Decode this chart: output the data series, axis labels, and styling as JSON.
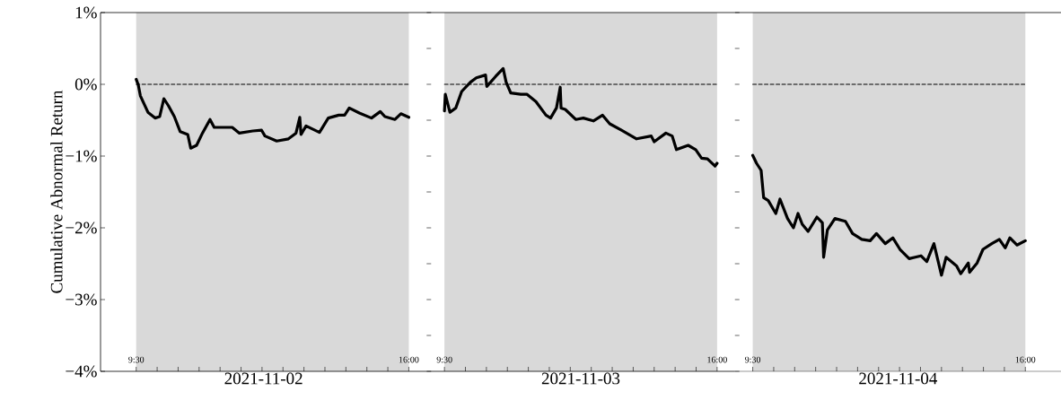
{
  "chart_data": [
    {
      "type": "line",
      "ylabel": "Cumulative Abnormal Return",
      "xlabel": "2021-11-02",
      "xlim": [
        8.65,
        16.425
      ],
      "ylim": [
        -4,
        1
      ],
      "yticks": [
        {
          "value": -4,
          "label": "−4%"
        },
        {
          "value": -3,
          "label": "−3%"
        },
        {
          "value": -2,
          "label": "−2%"
        },
        {
          "value": -1,
          "label": "−1%"
        },
        {
          "value": 0,
          "label": "0%"
        },
        {
          "value": 1,
          "label": "1%"
        }
      ],
      "xticks": [
        {
          "value": 9.5,
          "label": "9:30"
        },
        {
          "value": 10,
          "label": null
        },
        {
          "value": 10.5,
          "label": null
        },
        {
          "value": 11,
          "label": null
        },
        {
          "value": 11.5,
          "label": null
        },
        {
          "value": 12,
          "label": null
        },
        {
          "value": 12.5,
          "label": null
        },
        {
          "value": 13,
          "label": null
        },
        {
          "value": 13.5,
          "label": null
        },
        {
          "value": 14,
          "label": null
        },
        {
          "value": 14.5,
          "label": null
        },
        {
          "value": 15,
          "label": null
        },
        {
          "value": 15.5,
          "label": null
        },
        {
          "value": 16,
          "label": "16:00"
        }
      ],
      "bands": [
        {
          "axis": "x",
          "from": 9.5,
          "to": 16,
          "color": "#d9d9d9"
        }
      ],
      "series": [
        {
          "color": "#000000",
          "line_style": "dashed",
          "x": [
            9.5,
            16
          ],
          "values": [
            0,
            0
          ]
        },
        {
          "color": "#000000",
          "line_style": "solid",
          "x": [
            9.5,
            9.55,
            9.6,
            9.78,
            9.95,
            10.06,
            10.16,
            10.27,
            10.41,
            10.55,
            10.73,
            10.8,
            10.94,
            11.08,
            11.26,
            11.36,
            11.79,
            11.96,
            12.28,
            12.49,
            12.57,
            12.85,
            13.13,
            13.31,
            13.4,
            13.43,
            13.55,
            13.87,
            14.08,
            14.33,
            14.47,
            14.58,
            14.82,
            15.11,
            15.32,
            15.43,
            15.67,
            15.81,
            16.0
          ],
          "values": [
            0.07,
            -0.01,
            -0.16,
            -0.39,
            -0.47,
            -0.45,
            -0.2,
            -0.3,
            -0.45,
            -0.66,
            -0.7,
            -0.89,
            -0.85,
            -0.68,
            -0.49,
            -0.6,
            -0.6,
            -0.68,
            -0.65,
            -0.64,
            -0.72,
            -0.79,
            -0.76,
            -0.68,
            -0.46,
            -0.7,
            -0.58,
            -0.67,
            -0.47,
            -0.43,
            -0.43,
            -0.33,
            -0.4,
            -0.47,
            -0.38,
            -0.45,
            -0.49,
            -0.41,
            -0.46
          ]
        }
      ]
    },
    {
      "type": "line",
      "xlabel": "2021-11-03",
      "tick_labels": "x",
      "xlim": [
        9.075,
        16.425
      ],
      "ylim": [
        -4,
        1
      ],
      "xticks": [
        {
          "value": 9.5,
          "label": "9:30"
        },
        {
          "value": 10,
          "label": null
        },
        {
          "value": 10.5,
          "label": null
        },
        {
          "value": 11,
          "label": null
        },
        {
          "value": 11.5,
          "label": null
        },
        {
          "value": 12,
          "label": null
        },
        {
          "value": 12.5,
          "label": null
        },
        {
          "value": 13,
          "label": null
        },
        {
          "value": 13.5,
          "label": null
        },
        {
          "value": 14,
          "label": null
        },
        {
          "value": 14.5,
          "label": null
        },
        {
          "value": 15,
          "label": null
        },
        {
          "value": 15.5,
          "label": null
        },
        {
          "value": 16,
          "label": "16:00"
        }
      ],
      "bands": [
        {
          "axis": "x",
          "from": 9.5,
          "to": 16,
          "color": "#d9d9d9"
        }
      ],
      "series": [
        {
          "color": "#000000",
          "line_style": "dashed",
          "x": [
            9.5,
            16
          ],
          "values": [
            0,
            0
          ]
        },
        {
          "color": "#000000",
          "line_style": "solid",
          "x": [
            9.5,
            9.52,
            9.63,
            9.77,
            9.91,
            10.12,
            10.26,
            10.48,
            10.51,
            10.72,
            10.9,
            10.97,
            11.08,
            11.32,
            11.47,
            11.68,
            11.92,
            12.03,
            12.17,
            12.26,
            12.28,
            12.38,
            12.63,
            12.81,
            13.05,
            13.27,
            13.44,
            13.72,
            14.08,
            14.43,
            14.5,
            14.78,
            14.93,
            15.03,
            15.31,
            15.49,
            15.63,
            15.77,
            15.95,
            16.0
          ],
          "values": [
            -0.37,
            -0.14,
            -0.39,
            -0.33,
            -0.1,
            0.03,
            0.09,
            0.13,
            -0.03,
            0.11,
            0.22,
            0.03,
            -0.12,
            -0.14,
            -0.14,
            -0.24,
            -0.43,
            -0.47,
            -0.33,
            -0.04,
            -0.33,
            -0.35,
            -0.49,
            -0.47,
            -0.51,
            -0.43,
            -0.55,
            -0.64,
            -0.76,
            -0.72,
            -0.8,
            -0.68,
            -0.72,
            -0.91,
            -0.85,
            -0.91,
            -1.03,
            -1.04,
            -1.14,
            -1.1
          ]
        }
      ]
    },
    {
      "type": "line",
      "xlabel": "2021-11-04",
      "tick_labels": "x",
      "xlim": [
        9.075,
        16.85
      ],
      "ylim": [
        -4,
        1
      ],
      "xticks": [
        {
          "value": 9.5,
          "label": "9:30"
        },
        {
          "value": 10,
          "label": null
        },
        {
          "value": 10.5,
          "label": null
        },
        {
          "value": 11,
          "label": null
        },
        {
          "value": 11.5,
          "label": null
        },
        {
          "value": 12,
          "label": null
        },
        {
          "value": 12.5,
          "label": null
        },
        {
          "value": 13,
          "label": null
        },
        {
          "value": 13.5,
          "label": null
        },
        {
          "value": 14,
          "label": null
        },
        {
          "value": 14.5,
          "label": null
        },
        {
          "value": 15,
          "label": null
        },
        {
          "value": 15.5,
          "label": null
        },
        {
          "value": 16,
          "label": "16:00"
        }
      ],
      "bands": [
        {
          "axis": "x",
          "from": 9.5,
          "to": 16,
          "color": "#d9d9d9"
        }
      ],
      "series": [
        {
          "color": "#000000",
          "line_style": "dashed",
          "x": [
            9.5,
            16
          ],
          "values": [
            0,
            0
          ]
        },
        {
          "color": "#000000",
          "line_style": "solid",
          "x": [
            9.5,
            9.59,
            9.7,
            9.76,
            9.87,
            10.05,
            10.15,
            10.33,
            10.47,
            10.58,
            10.68,
            10.82,
            11.03,
            11.16,
            11.19,
            11.28,
            11.46,
            11.71,
            11.88,
            12.1,
            12.3,
            12.45,
            12.66,
            12.84,
            13.01,
            13.23,
            13.51,
            13.65,
            13.82,
            14.0,
            14.11,
            14.36,
            14.46,
            14.64,
            14.67,
            14.85,
            14.99,
            15.2,
            15.38,
            15.52,
            15.63,
            15.8,
            16.0
          ],
          "values": [
            -0.99,
            -1.1,
            -1.2,
            -1.58,
            -1.62,
            -1.8,
            -1.6,
            -1.87,
            -2.0,
            -1.8,
            -1.95,
            -2.05,
            -1.85,
            -1.93,
            -2.41,
            -2.03,
            -1.87,
            -1.91,
            -2.08,
            -2.16,
            -2.18,
            -2.08,
            -2.22,
            -2.14,
            -2.3,
            -2.43,
            -2.39,
            -2.47,
            -2.22,
            -2.66,
            -2.41,
            -2.53,
            -2.64,
            -2.49,
            -2.62,
            -2.49,
            -2.3,
            -2.22,
            -2.16,
            -2.28,
            -2.14,
            -2.24,
            -2.18
          ]
        }
      ]
    }
  ]
}
